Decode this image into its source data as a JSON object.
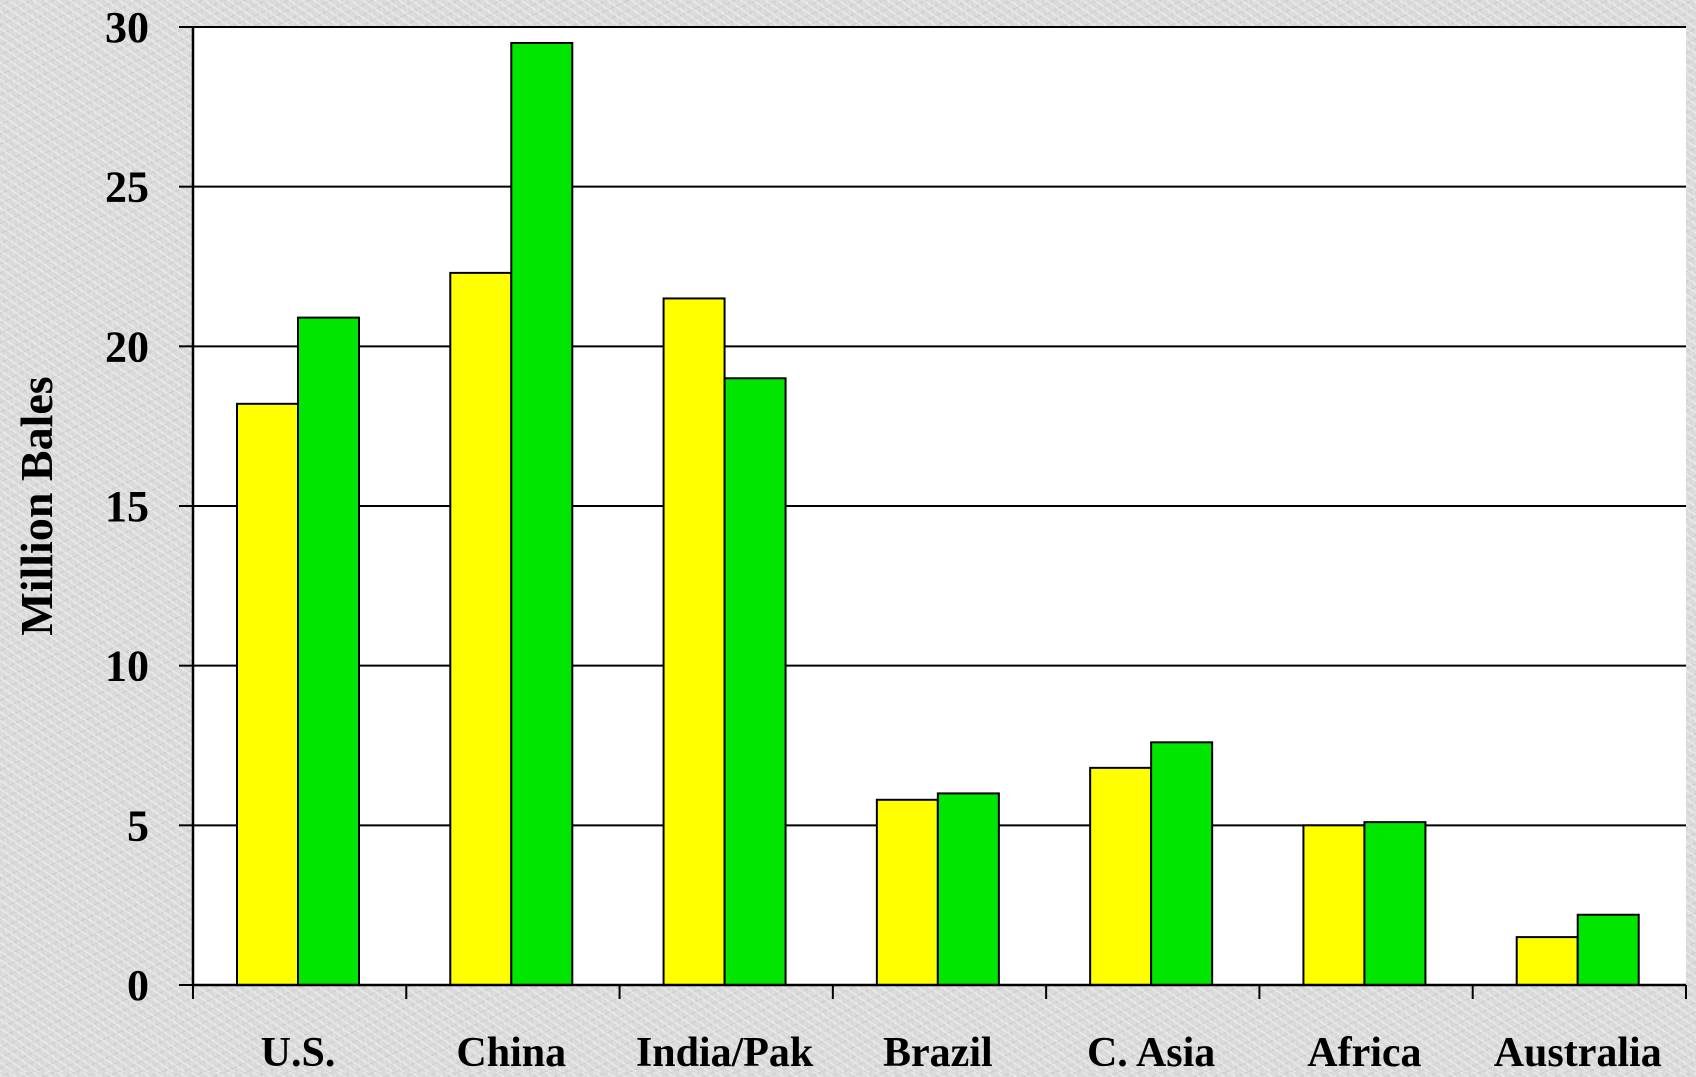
{
  "chart_data": {
    "type": "bar",
    "title": "",
    "xlabel": "",
    "ylabel": "Million Bales",
    "ylim": [
      0,
      30
    ],
    "yticks": [
      0,
      5,
      10,
      15,
      20,
      25,
      30
    ],
    "grid": true,
    "categories": [
      "U.S.",
      "China",
      "India/Pak",
      "Brazil",
      "C. Asia",
      "Africa",
      "Australia"
    ],
    "series": [
      {
        "color": "#ffff00",
        "values": [
          18.2,
          22.3,
          21.5,
          5.8,
          6.8,
          5.0,
          1.5
        ]
      },
      {
        "color": "#00e600",
        "values": [
          20.9,
          29.5,
          19.0,
          6.0,
          7.6,
          5.1,
          2.2
        ]
      }
    ]
  }
}
